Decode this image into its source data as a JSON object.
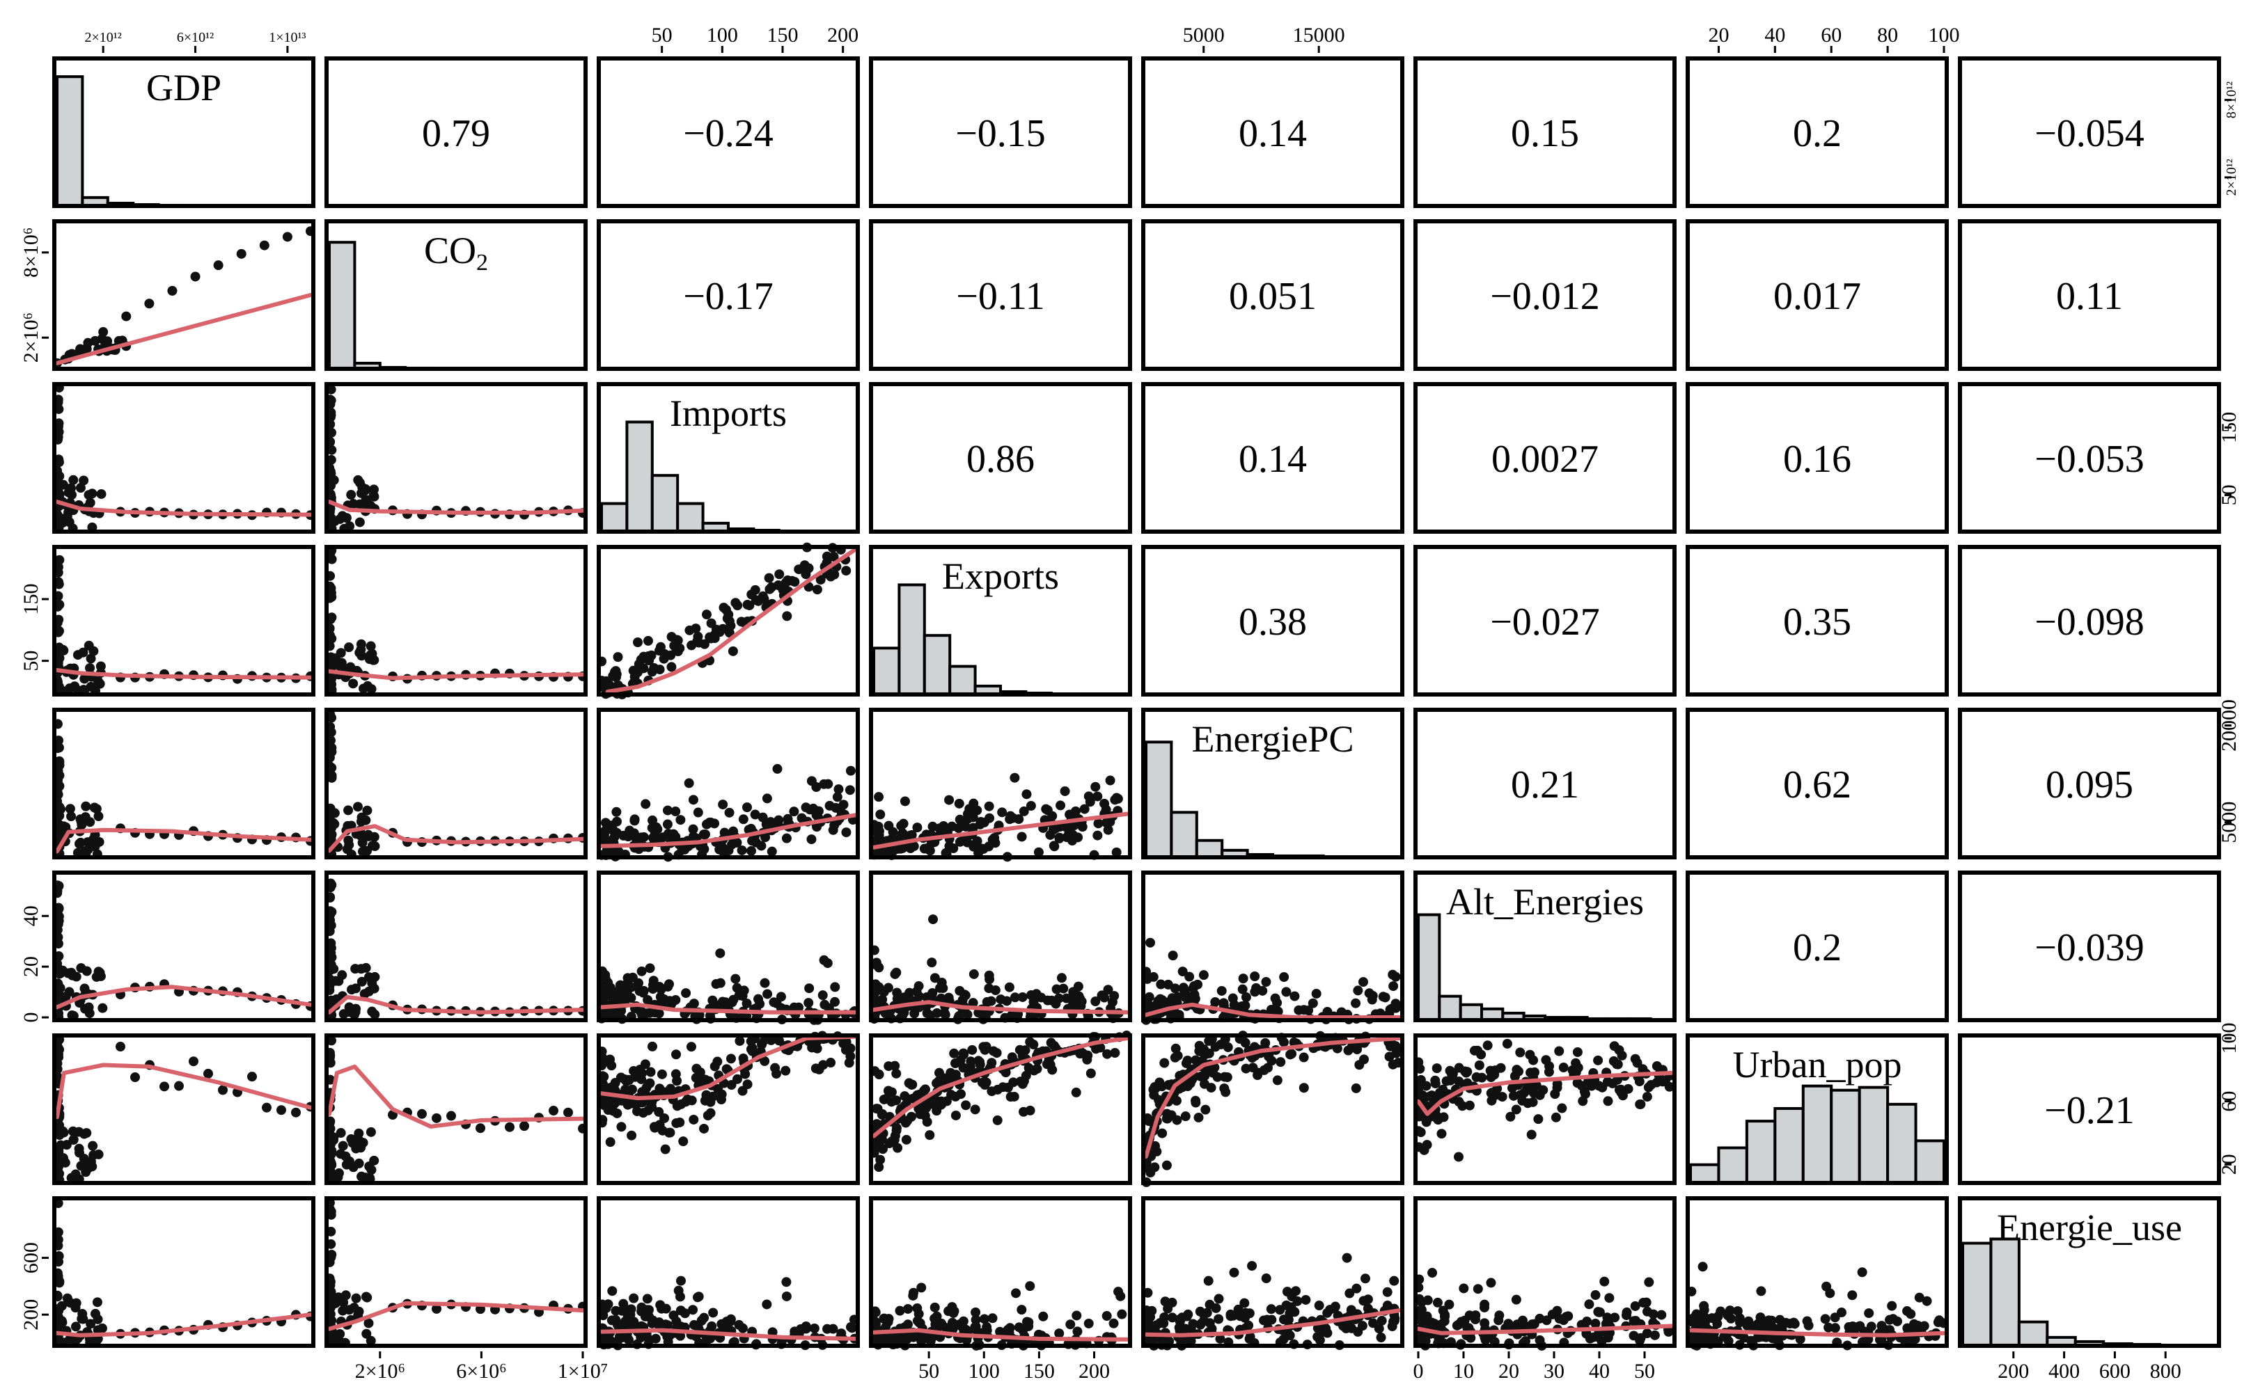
{
  "chart_data": {
    "type": "scatter-matrix",
    "title": "",
    "variables": [
      "GDP",
      "CO2",
      "Imports",
      "Exports",
      "EnergiePC",
      "Alt_Energies",
      "Urban_pop",
      "Energie_use"
    ],
    "variable_labels": [
      {
        "base": "GDP",
        "sub": ""
      },
      {
        "base": "CO",
        "sub": "2"
      },
      {
        "base": "Imports",
        "sub": ""
      },
      {
        "base": "Exports",
        "sub": ""
      },
      {
        "base": "EnergiePC",
        "sub": ""
      },
      {
        "base": "Alt_Energies",
        "sub": ""
      },
      {
        "base": "Urban_pop",
        "sub": ""
      },
      {
        "base": "Energie_use",
        "sub": ""
      }
    ],
    "ranges": [
      [
        0,
        11000000000000.0
      ],
      [
        0,
        10000000.0
      ],
      [
        0,
        210
      ],
      [
        0,
        230
      ],
      [
        0,
        22000
      ],
      [
        0,
        56
      ],
      [
        10,
        100
      ],
      [
        0,
        1000
      ]
    ],
    "correlations": {
      "0,1": "0.79",
      "0,2": "−0.24",
      "0,3": "−0.15",
      "0,4": "0.14",
      "0,5": "0.15",
      "0,6": "0.2",
      "0,7": "−0.054",
      "1,2": "−0.17",
      "1,3": "−0.11",
      "1,4": "0.051",
      "1,5": "−0.012",
      "1,6": "0.017",
      "1,7": "0.11",
      "2,3": "0.86",
      "2,4": "0.14",
      "2,5": "0.0027",
      "2,6": "0.16",
      "2,7": "−0.053",
      "3,4": "0.38",
      "3,5": "−0.027",
      "3,6": "0.35",
      "3,7": "−0.098",
      "4,5": "0.21",
      "4,6": "0.62",
      "4,7": "0.095",
      "5,6": "0.2",
      "5,7": "−0.039",
      "6,7": "−0.21"
    },
    "histograms": [
      [
        0.92,
        0.06,
        0.02,
        0.01,
        0.005,
        0.003,
        0.002,
        0.001,
        0.001,
        0.001
      ],
      [
        0.9,
        0.04,
        0.01,
        0.005,
        0.003,
        0.002,
        0.001,
        0.001,
        0.001,
        0.001
      ],
      [
        0.2,
        0.78,
        0.4,
        0.2,
        0.06,
        0.02,
        0.01,
        0.005,
        0.003
      ],
      [
        0.33,
        0.78,
        0.42,
        0.2,
        0.06,
        0.02,
        0.01,
        0.005,
        0.003
      ],
      [
        0.82,
        0.32,
        0.12,
        0.05,
        0.02,
        0.01,
        0.01,
        0.005,
        0.003
      ],
      [
        0.75,
        0.17,
        0.11,
        0.08,
        0.05,
        0.03,
        0.02,
        0.02,
        0.01,
        0.01,
        0.01
      ],
      [
        0.13,
        0.25,
        0.44,
        0.53,
        0.69,
        0.66,
        0.68,
        0.56,
        0.3
      ],
      [
        0.73,
        0.76,
        0.17,
        0.06,
        0.03,
        0.015,
        0.01,
        0.005
      ]
    ],
    "top_axis_ticks": [
      {
        "col": 0,
        "ticks": [
          {
            "v": 2000000000000.0,
            "label": "2×10¹²"
          },
          {
            "v": 6000000000000.0,
            "label": "6×10¹²"
          },
          {
            "v": 10000000000000.0,
            "label": "1×10¹³"
          }
        ]
      },
      {
        "col": 2,
        "ticks": [
          {
            "v": 50,
            "label": "50"
          },
          {
            "v": 100,
            "label": "100"
          },
          {
            "v": 150,
            "label": "150"
          },
          {
            "v": 200,
            "label": "200"
          }
        ]
      },
      {
        "col": 4,
        "ticks": [
          {
            "v": 5000,
            "label": "5000"
          },
          {
            "v": 15000,
            "label": "15000"
          }
        ]
      },
      {
        "col": 6,
        "ticks": [
          {
            "v": 20,
            "label": "20"
          },
          {
            "v": 40,
            "label": "40"
          },
          {
            "v": 60,
            "label": "60"
          },
          {
            "v": 80,
            "label": "80"
          },
          {
            "v": 100,
            "label": "100"
          }
        ]
      }
    ],
    "bottom_axis_ticks": [
      {
        "col": 1,
        "ticks": [
          {
            "v": 2000000.0,
            "label": "2×10⁶"
          },
          {
            "v": 6000000.0,
            "label": "6×10⁶"
          },
          {
            "v": 10000000.0,
            "label": "1×10⁷"
          }
        ]
      },
      {
        "col": 3,
        "ticks": [
          {
            "v": 50,
            "label": "50"
          },
          {
            "v": 100,
            "label": "100"
          },
          {
            "v": 150,
            "label": "150"
          },
          {
            "v": 200,
            "label": "200"
          }
        ]
      },
      {
        "col": 5,
        "ticks": [
          {
            "v": 0,
            "label": "0"
          },
          {
            "v": 10,
            "label": "10"
          },
          {
            "v": 20,
            "label": "20"
          },
          {
            "v": 30,
            "label": "30"
          },
          {
            "v": 40,
            "label": "40"
          },
          {
            "v": 50,
            "label": "50"
          }
        ]
      },
      {
        "col": 7,
        "ticks": [
          {
            "v": 200,
            "label": "200"
          },
          {
            "v": 400,
            "label": "400"
          },
          {
            "v": 600,
            "label": "600"
          },
          {
            "v": 800,
            "label": "800"
          }
        ]
      }
    ],
    "left_axis_ticks": [
      {
        "row": 1,
        "ticks": [
          {
            "v": 2000000.0,
            "label": "2×10⁶"
          },
          {
            "v": 8000000.0,
            "label": "8×10⁶"
          }
        ]
      },
      {
        "row": 3,
        "ticks": [
          {
            "v": 50,
            "label": "50"
          },
          {
            "v": 150,
            "label": "150"
          }
        ]
      },
      {
        "row": 5,
        "ticks": [
          {
            "v": 0,
            "label": "0"
          },
          {
            "v": 20,
            "label": "20"
          },
          {
            "v": 40,
            "label": "40"
          }
        ]
      },
      {
        "row": 7,
        "ticks": [
          {
            "v": 200,
            "label": "200"
          },
          {
            "v": 600,
            "label": "600"
          }
        ]
      }
    ],
    "right_axis_ticks": [
      {
        "row": 0,
        "ticks": [
          {
            "v": 2000000000000.0,
            "label": "2×10¹²"
          },
          {
            "v": 8000000000000.0,
            "label": "8×10¹²"
          }
        ]
      },
      {
        "row": 2,
        "ticks": [
          {
            "v": 50,
            "label": "50"
          },
          {
            "v": 150,
            "label": "150"
          }
        ]
      },
      {
        "row": 4,
        "ticks": [
          {
            "v": 5000,
            "label": "5000"
          },
          {
            "v": 20000,
            "label": "20000"
          }
        ]
      },
      {
        "row": 6,
        "ticks": [
          {
            "v": 20,
            "label": "20"
          },
          {
            "v": 60,
            "label": "60"
          },
          {
            "v": 100,
            "label": "100"
          }
        ]
      }
    ],
    "loess_curves": {
      "1,0": [
        [
          0,
          200000.0
        ],
        [
          2000000000000.0,
          1100000.0
        ],
        [
          5000000000000.0,
          2400000.0
        ],
        [
          8000000000000.0,
          3700000.0
        ],
        [
          11000000000000.0,
          5000000.0
        ]
      ],
      "2,0": [
        [
          0,
          40
        ],
        [
          1000000000000.0,
          30
        ],
        [
          3000000000000.0,
          25
        ],
        [
          6000000000000.0,
          22
        ],
        [
          11000000000000.0,
          21
        ]
      ],
      "2,1": [
        [
          0,
          40
        ],
        [
          800000.0,
          28
        ],
        [
          2000000.0,
          26
        ],
        [
          5000000.0,
          24
        ],
        [
          8000000.0,
          24
        ],
        [
          10000000.0,
          27
        ]
      ],
      "3,0": [
        [
          0,
          35
        ],
        [
          1000000000000.0,
          30
        ],
        [
          3000000000000.0,
          26
        ],
        [
          6000000000000.0,
          24
        ],
        [
          11000000000000.0,
          23
        ]
      ],
      "3,1": [
        [
          0,
          33
        ],
        [
          1000000.0,
          28
        ],
        [
          2500000.0,
          22
        ],
        [
          5000000.0,
          25
        ],
        [
          8000000.0,
          27
        ],
        [
          10000000.0,
          28
        ]
      ],
      "3,2": [
        [
          5,
          0
        ],
        [
          30,
          8
        ],
        [
          60,
          30
        ],
        [
          90,
          60
        ],
        [
          130,
          120
        ],
        [
          170,
          178
        ],
        [
          210,
          230
        ]
      ],
      "4,0": [
        [
          0,
          500
        ],
        [
          500000000000.0,
          3500
        ],
        [
          2000000000000.0,
          3800
        ],
        [
          5000000000000.0,
          3600
        ],
        [
          8000000000000.0,
          2800
        ],
        [
          11000000000000.0,
          2300
        ]
      ],
      "4,1": [
        [
          0,
          600
        ],
        [
          700000.0,
          3600
        ],
        [
          1800000.0,
          4400
        ],
        [
          3000000.0,
          2300
        ],
        [
          5000000.0,
          1900
        ],
        [
          8000000.0,
          2100
        ],
        [
          10000000.0,
          2400
        ]
      ],
      "4,2": [
        [
          0,
          1300
        ],
        [
          40,
          1500
        ],
        [
          80,
          1900
        ],
        [
          120,
          3000
        ],
        [
          160,
          4500
        ],
        [
          210,
          6100
        ]
      ],
      "4,3": [
        [
          0,
          1100
        ],
        [
          40,
          2300
        ],
        [
          90,
          3300
        ],
        [
          150,
          4600
        ],
        [
          230,
          6300
        ]
      ],
      "5,0": [
        [
          0,
          4
        ],
        [
          1000000000000.0,
          8
        ],
        [
          3000000000000.0,
          11
        ],
        [
          5000000000000.0,
          12
        ],
        [
          8000000000000.0,
          9
        ],
        [
          11000000000000.0,
          5
        ]
      ],
      "5,1": [
        [
          0,
          2
        ],
        [
          700000.0,
          8
        ],
        [
          1500000.0,
          7
        ],
        [
          3000000.0,
          3
        ],
        [
          6000000.0,
          2
        ],
        [
          10000000.0,
          3
        ]
      ],
      "5,2": [
        [
          0,
          4
        ],
        [
          30,
          5
        ],
        [
          60,
          3
        ],
        [
          100,
          2.5
        ],
        [
          140,
          2
        ],
        [
          210,
          2
        ]
      ],
      "5,3": [
        [
          0,
          3
        ],
        [
          30,
          5
        ],
        [
          50,
          6
        ],
        [
          80,
          4
        ],
        [
          150,
          2.5
        ],
        [
          230,
          2
        ]
      ],
      "5,4": [
        [
          0,
          1
        ],
        [
          2000,
          3.5
        ],
        [
          4000,
          5
        ],
        [
          6000,
          3.5
        ],
        [
          9000,
          1
        ],
        [
          13000,
          0
        ],
        [
          22000,
          0
        ]
      ],
      "6,0": [
        [
          0,
          50
        ],
        [
          300000000000.0,
          78
        ],
        [
          2000000000000.0,
          83
        ],
        [
          4000000000000.0,
          82
        ],
        [
          7000000000000.0,
          72
        ],
        [
          11000000000000.0,
          56
        ]
      ],
      "6,1": [
        [
          0,
          52
        ],
        [
          300000.0,
          78
        ],
        [
          1000000.0,
          82
        ],
        [
          2500000.0,
          55
        ],
        [
          4000000.0,
          44
        ],
        [
          6000000.0,
          48
        ],
        [
          10000000.0,
          49
        ]
      ],
      "6,2": [
        [
          0,
          65
        ],
        [
          30,
          62
        ],
        [
          60,
          63
        ],
        [
          90,
          70
        ],
        [
          130,
          88
        ],
        [
          170,
          100
        ],
        [
          210,
          101
        ]
      ],
      "6,3": [
        [
          0,
          38
        ],
        [
          30,
          55
        ],
        [
          60,
          68
        ],
        [
          100,
          78
        ],
        [
          150,
          88
        ],
        [
          200,
          97
        ],
        [
          230,
          100
        ]
      ],
      "6,4": [
        [
          0,
          25
        ],
        [
          1000,
          50
        ],
        [
          2500,
          70
        ],
        [
          5000,
          83
        ],
        [
          10000,
          92
        ],
        [
          16000,
          97
        ],
        [
          22000,
          100
        ]
      ],
      "6,5": [
        [
          0,
          60
        ],
        [
          2,
          52
        ],
        [
          5,
          60
        ],
        [
          10,
          68
        ],
        [
          20,
          72
        ],
        [
          40,
          76
        ],
        [
          56,
          78
        ]
      ],
      "7,0": [
        [
          0,
          70
        ],
        [
          1000000000000.0,
          55
        ],
        [
          4000000000000.0,
          70
        ],
        [
          7000000000000.0,
          120
        ],
        [
          11000000000000.0,
          200
        ]
      ],
      "7,1": [
        [
          0,
          100
        ],
        [
          1000000.0,
          150
        ],
        [
          3000000.0,
          280
        ],
        [
          6000000.0,
          270
        ],
        [
          10000000.0,
          230
        ]
      ],
      "7,2": [
        [
          0,
          80
        ],
        [
          50,
          90
        ],
        [
          100,
          65
        ],
        [
          150,
          40
        ],
        [
          210,
          30
        ]
      ],
      "7,3": [
        [
          0,
          75
        ],
        [
          40,
          90
        ],
        [
          80,
          55
        ],
        [
          150,
          30
        ],
        [
          230,
          25
        ]
      ],
      "7,4": [
        [
          0,
          60
        ],
        [
          3000,
          55
        ],
        [
          8000,
          70
        ],
        [
          15000,
          140
        ],
        [
          22000,
          230
        ]
      ],
      "7,5": [
        [
          0,
          100
        ],
        [
          5,
          70
        ],
        [
          20,
          80
        ],
        [
          40,
          100
        ],
        [
          56,
          120
        ]
      ],
      "7,6": [
        [
          10,
          90
        ],
        [
          40,
          70
        ],
        [
          60,
          60
        ],
        [
          80,
          55
        ],
        [
          100,
          70
        ]
      ]
    },
    "scatter_shapes": {
      "1,0": {
        "kind": "curve",
        "pts": [
          [
            0,
            200000.0
          ],
          [
            1000000000000.0,
            1200000.0
          ],
          [
            2000000000000.0,
            2400000.0
          ],
          [
            3000000000000.0,
            3500000.0
          ],
          [
            4000000000000.0,
            4400000.0
          ],
          [
            5000000000000.0,
            5300000.0
          ],
          [
            6000000000000.0,
            6300000.0
          ],
          [
            7000000000000.0,
            7100000.0
          ],
          [
            8000000000000.0,
            7900000.0
          ],
          [
            9000000000000.0,
            8500000.0
          ],
          [
            10000000000000.0,
            9100000.0
          ],
          [
            11000000000000.0,
            9500000.0
          ]
        ],
        "band": [
          [
            0,
            200000.0
          ],
          [
            1500000000000.0,
            1600000.0
          ],
          [
            3000000000000.0,
            1600000.0
          ]
        ]
      },
      "2,0": {
        "kind": "lspike"
      },
      "2,1": {
        "kind": "lspike"
      },
      "3,0": {
        "kind": "lspike"
      },
      "3,1": {
        "kind": "lspike"
      },
      "3,2": {
        "kind": "linear"
      },
      "4,0": {
        "kind": "lspike"
      },
      "4,1": {
        "kind": "lspike"
      },
      "4,2": {
        "kind": "cloud"
      },
      "4,3": {
        "kind": "cloud"
      },
      "5,0": {
        "kind": "lspike"
      },
      "5,1": {
        "kind": "lspike"
      },
      "5,2": {
        "kind": "cloud"
      },
      "5,3": {
        "kind": "cloud"
      },
      "5,4": {
        "kind": "cloud"
      },
      "6,0": {
        "kind": "lspike"
      },
      "6,1": {
        "kind": "lspike"
      },
      "6,2": {
        "kind": "cloud"
      },
      "6,3": {
        "kind": "cloud"
      },
      "6,4": {
        "kind": "cloud"
      },
      "6,5": {
        "kind": "cloud"
      },
      "7,0": {
        "kind": "lspike"
      },
      "7,1": {
        "kind": "lspike"
      },
      "7,2": {
        "kind": "cloud"
      },
      "7,3": {
        "kind": "cloud"
      },
      "7,4": {
        "kind": "cloud"
      },
      "7,5": {
        "kind": "cloud"
      },
      "7,6": {
        "kind": "cloud"
      }
    },
    "colors": {
      "hist_fill": "#cfd3d3",
      "points": "#111111",
      "smooth": "#d9636b",
      "frame": "#000000"
    }
  }
}
